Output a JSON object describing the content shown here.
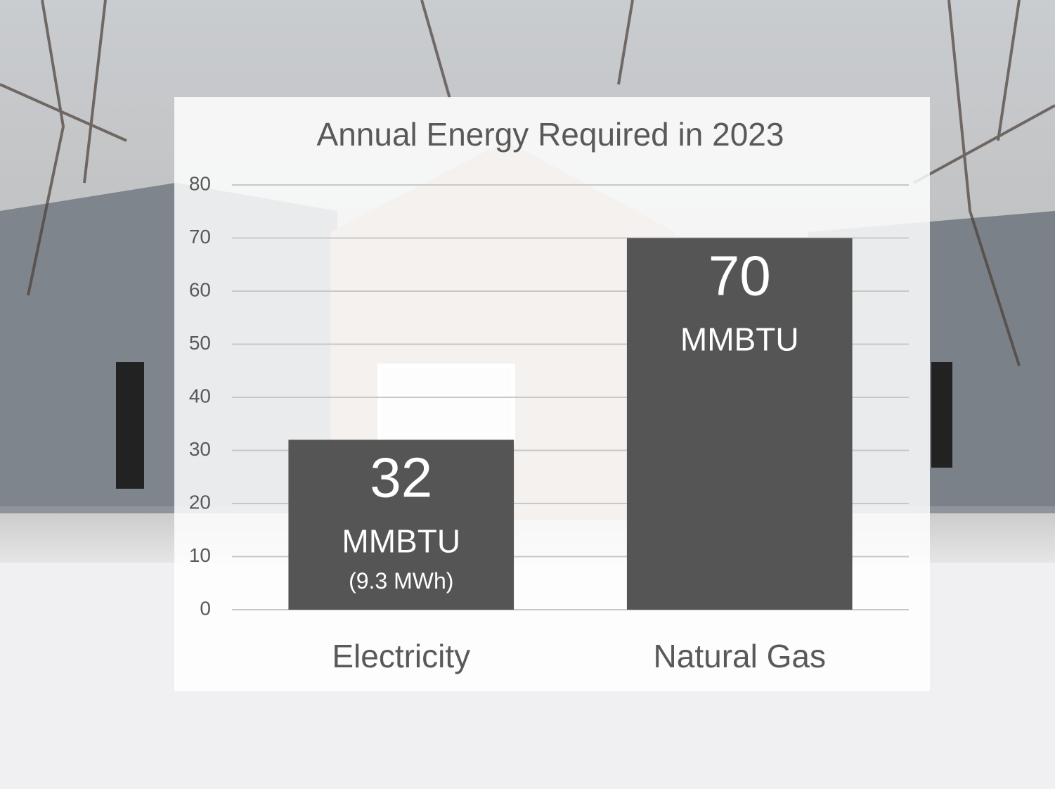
{
  "chart_data": {
    "type": "bar",
    "title": "Annual Energy Required in 2023",
    "categories": [
      "Electricity",
      "Natural Gas"
    ],
    "values": [
      32,
      70
    ],
    "value_labels": [
      [
        "32",
        "MMBTU",
        "(9.3 MWh)"
      ],
      [
        "70",
        "MMBTU"
      ]
    ],
    "color": "#555555",
    "ylim": [
      0,
      80
    ],
    "yticks": [
      0,
      10,
      20,
      30,
      40,
      50,
      60,
      70,
      80
    ],
    "grid": true
  }
}
